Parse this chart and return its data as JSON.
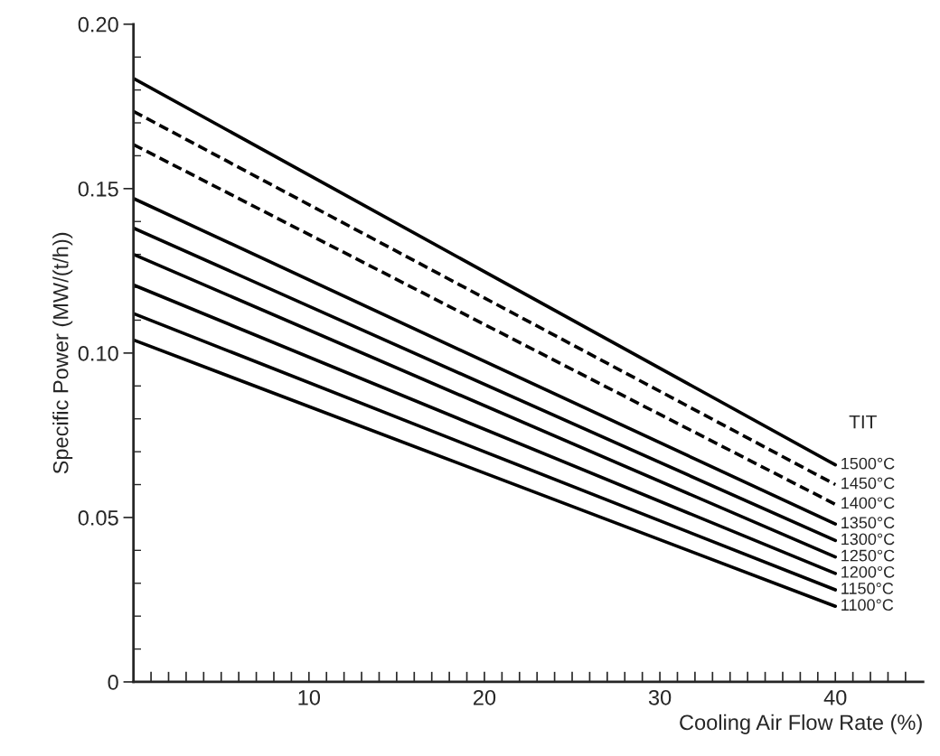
{
  "chart_data": {
    "type": "line",
    "xlabel": "Cooling Air Flow Rate (%)",
    "ylabel": "Specific Power (MW/(t/h))",
    "legend_title": "TIT",
    "x": [
      0,
      40
    ],
    "series": [
      {
        "name": "1500°C",
        "color": "#000000",
        "line_style": "solid",
        "values": [
          0.1835,
          0.066
        ]
      },
      {
        "name": "1450°C",
        "color": "#000000",
        "line_style": "dashed",
        "values": [
          0.1735,
          0.06
        ]
      },
      {
        "name": "1400°C",
        "color": "#000000",
        "line_style": "dashed",
        "values": [
          0.1634,
          0.054
        ]
      },
      {
        "name": "1350°C",
        "color": "#000000",
        "line_style": "solid",
        "values": [
          0.147,
          0.048
        ]
      },
      {
        "name": "1300°C",
        "color": "#000000",
        "line_style": "solid",
        "values": [
          0.138,
          0.043
        ]
      },
      {
        "name": "1250°C",
        "color": "#000000",
        "line_style": "solid",
        "values": [
          0.13,
          0.038
        ]
      },
      {
        "name": "1200°C",
        "color": "#000000",
        "line_style": "solid",
        "values": [
          0.1207,
          0.033
        ]
      },
      {
        "name": "1150°C",
        "color": "#000000",
        "line_style": "solid",
        "values": [
          0.112,
          0.028
        ]
      },
      {
        "name": "1100°C",
        "color": "#000000",
        "line_style": "solid",
        "values": [
          0.104,
          0.023
        ]
      }
    ],
    "xlim": [
      0,
      45
    ],
    "ylim": [
      0,
      0.2
    ],
    "xticks": [
      {
        "value": 1,
        "label": null
      },
      {
        "value": 2,
        "label": null
      },
      {
        "value": 3,
        "label": null
      },
      {
        "value": 4,
        "label": null
      },
      {
        "value": 5,
        "label": null
      },
      {
        "value": 6,
        "label": null
      },
      {
        "value": 7,
        "label": null
      },
      {
        "value": 8,
        "label": null
      },
      {
        "value": 9,
        "label": null
      },
      10,
      {
        "value": 11,
        "label": null
      },
      {
        "value": 12,
        "label": null
      },
      {
        "value": 13,
        "label": null
      },
      {
        "value": 14,
        "label": null
      },
      {
        "value": 15,
        "label": null
      },
      {
        "value": 16,
        "label": null
      },
      {
        "value": 17,
        "label": null
      },
      {
        "value": 18,
        "label": null
      },
      {
        "value": 19,
        "label": null
      },
      20,
      {
        "value": 21,
        "label": null
      },
      {
        "value": 22,
        "label": null
      },
      {
        "value": 23,
        "label": null
      },
      {
        "value": 24,
        "label": null
      },
      {
        "value": 25,
        "label": null
      },
      {
        "value": 26,
        "label": null
      },
      {
        "value": 27,
        "label": null
      },
      {
        "value": 28,
        "label": null
      },
      {
        "value": 29,
        "label": null
      },
      30,
      {
        "value": 31,
        "label": null
      },
      {
        "value": 32,
        "label": null
      },
      {
        "value": 33,
        "label": null
      },
      {
        "value": 34,
        "label": null
      },
      {
        "value": 35,
        "label": null
      },
      {
        "value": 36,
        "label": null
      },
      {
        "value": 37,
        "label": null
      },
      {
        "value": 38,
        "label": null
      },
      {
        "value": 39,
        "label": null
      },
      40,
      {
        "value": 41,
        "label": null
      },
      {
        "value": 42,
        "label": null
      },
      {
        "value": 43,
        "label": null
      },
      {
        "value": 44,
        "label": null
      }
    ],
    "yticks": [
      {
        "value": 0,
        "label": "0"
      },
      {
        "value": 0.01,
        "label": null
      },
      {
        "value": 0.02,
        "label": null
      },
      {
        "value": 0.03,
        "label": null
      },
      {
        "value": 0.04,
        "label": null
      },
      0.05,
      {
        "value": 0.06,
        "label": null
      },
      {
        "value": 0.07,
        "label": null
      },
      {
        "value": 0.08,
        "label": null
      },
      {
        "value": 0.09,
        "label": null
      },
      {
        "value": 0.1,
        "label": "0.10"
      },
      {
        "value": 0.11,
        "label": null
      },
      {
        "value": 0.12,
        "label": null
      },
      {
        "value": 0.13,
        "label": null
      },
      {
        "value": 0.14,
        "label": null
      },
      0.15,
      {
        "value": 0.16,
        "label": null
      },
      {
        "value": 0.17,
        "label": null
      },
      {
        "value": 0.18,
        "label": null
      },
      {
        "value": 0.19,
        "label": null
      },
      {
        "value": 0.2,
        "label": "0.20"
      }
    ],
    "grid": false,
    "legend": false,
    "marker": "none"
  }
}
